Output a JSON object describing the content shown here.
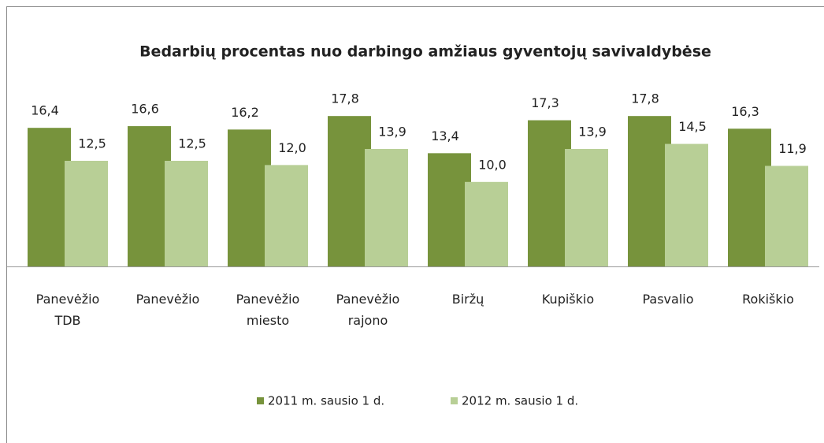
{
  "chart_data": {
    "type": "bar",
    "title": "Bedarbių procentas nuo darbingo amžiaus gyventojų savivaldybėse",
    "categories": [
      "Panevėžio TDB",
      "Panevėžio",
      "Panevėžio miesto",
      "Panevėžio rajono",
      "Biržų",
      "Kupiškio",
      "Pasvalio",
      "Rokiškio"
    ],
    "series": [
      {
        "name": "2011 m. sausio 1 d.",
        "color": "#77933c",
        "values": [
          16.4,
          16.6,
          16.2,
          17.8,
          13.4,
          17.3,
          17.8,
          16.3
        ],
        "value_labels": [
          "16,4",
          "16,6",
          "16,2",
          "17,8",
          "13,4",
          "17,3",
          "17,8",
          "16,3"
        ]
      },
      {
        "name": "2012 m. sausio 1 d.",
        "color": "#b8cf96",
        "values": [
          12.5,
          12.5,
          12.0,
          13.9,
          10.0,
          13.9,
          14.5,
          11.9
        ],
        "value_labels": [
          "12,5",
          "12,5",
          "12,0",
          "13,9",
          "10,0",
          "13,9",
          "14,5",
          "11,9"
        ]
      }
    ],
    "legend": "bottom"
  }
}
